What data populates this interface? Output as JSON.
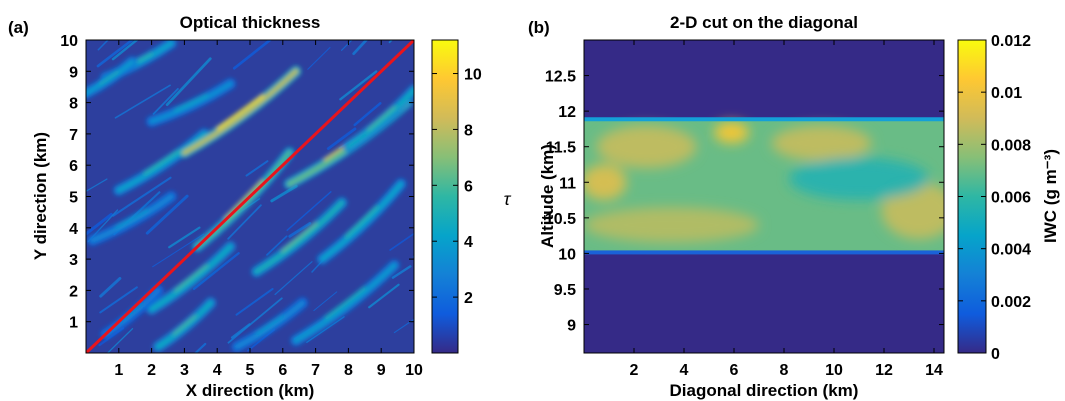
{
  "panels": {
    "a": {
      "label": "(a)",
      "title": "Optical thickness",
      "xlabel": "X direction (km)",
      "ylabel": "Y direction (km)",
      "colorbar_label": "τ"
    },
    "b": {
      "label": "(b)",
      "title": "2-D cut on the diagonal",
      "xlabel": "Diagonal direction (km)",
      "ylabel": "Altitude (km)",
      "colorbar_label": "IWC (g m⁻³)"
    }
  },
  "chart_data": [
    {
      "type": "heatmap",
      "title": "Optical thickness",
      "xlabel": "X direction (km)",
      "ylabel": "Y direction (km)",
      "xlim": [
        0,
        10
      ],
      "ylim": [
        0,
        10
      ],
      "xticks": [
        "1",
        "2",
        "3",
        "4",
        "5",
        "6",
        "7",
        "8",
        "9",
        "10"
      ],
      "xtick_values": [
        1,
        2,
        3,
        4,
        5,
        6,
        7,
        8,
        9,
        10
      ],
      "yticks": [
        "1",
        "2",
        "3",
        "4",
        "5",
        "6",
        "7",
        "8",
        "9",
        "10"
      ],
      "ytick_values": [
        1,
        2,
        3,
        4,
        5,
        6,
        7,
        8,
        9,
        10
      ],
      "colorbar": {
        "label": "τ",
        "range": [
          0,
          11.2
        ],
        "ticks": [
          "2",
          "4",
          "6",
          "8",
          "10"
        ],
        "tick_values": [
          2,
          4,
          6,
          8,
          10
        ]
      },
      "overlay_line": {
        "from": [
          0,
          0
        ],
        "to": [
          10,
          10
        ],
        "color": "#e8141c"
      },
      "colormap": "parula",
      "streaks": [
        {
          "from": [
            0.6,
            8.8
          ],
          "to": [
            2.6,
            9.9
          ],
          "peak": 5.5
        },
        {
          "from": [
            0.0,
            8.3
          ],
          "to": [
            1.4,
            9.3
          ],
          "peak": 5.0
        },
        {
          "from": [
            1.0,
            5.2
          ],
          "to": [
            3.6,
            7.0
          ],
          "peak": 5.5
        },
        {
          "from": [
            3.0,
            6.4
          ],
          "to": [
            6.4,
            9.0
          ],
          "peak": 10.5
        },
        {
          "from": [
            2.0,
            7.4
          ],
          "to": [
            4.4,
            8.6
          ],
          "peak": 4.5
        },
        {
          "from": [
            6.2,
            5.4
          ],
          "to": [
            9.8,
            8.0
          ],
          "peak": 8.5
        },
        {
          "from": [
            3.4,
            3.4
          ],
          "to": [
            6.2,
            6.4
          ],
          "peak": 8.0
        },
        {
          "from": [
            2.0,
            1.4
          ],
          "to": [
            4.4,
            3.4
          ],
          "peak": 6.0
        },
        {
          "from": [
            5.2,
            2.6
          ],
          "to": [
            7.8,
            4.8
          ],
          "peak": 6.5
        },
        {
          "from": [
            7.2,
            3.0
          ],
          "to": [
            9.6,
            5.4
          ],
          "peak": 5.5
        },
        {
          "from": [
            2.2,
            0.2
          ],
          "to": [
            3.8,
            1.6
          ],
          "peak": 6.0
        },
        {
          "from": [
            6.4,
            0.4
          ],
          "to": [
            9.4,
            2.8
          ],
          "peak": 5.0
        },
        {
          "from": [
            0.2,
            3.6
          ],
          "to": [
            2.6,
            5.0
          ],
          "peak": 4.0
        },
        {
          "from": [
            0.6,
            0.6
          ],
          "to": [
            2.2,
            2.0
          ],
          "peak": 3.5
        },
        {
          "from": [
            4.6,
            0.2
          ],
          "to": [
            6.6,
            1.6
          ],
          "peak": 4.0
        },
        {
          "from": [
            8.0,
            6.6
          ],
          "to": [
            10.0,
            8.4
          ],
          "peak": 6.0
        }
      ]
    },
    {
      "type": "heatmap",
      "title": "2-D cut on the diagonal",
      "xlabel": "Diagonal direction (km)",
      "ylabel": "Altitude (km)",
      "xlim": [
        0,
        14.4
      ],
      "ylim": [
        8.6,
        13.0
      ],
      "xticks": [
        "2",
        "4",
        "6",
        "8",
        "10",
        "12",
        "14"
      ],
      "xtick_values": [
        2,
        4,
        6,
        8,
        10,
        12,
        14
      ],
      "yticks": [
        "9",
        "9.5",
        "10",
        "10.5",
        "11",
        "11.5",
        "12",
        "12.5"
      ],
      "ytick_values": [
        9,
        9.5,
        10,
        10.5,
        11,
        11.5,
        12,
        12.5
      ],
      "colorbar": {
        "label": "IWC (g m⁻³)",
        "range": [
          0,
          0.012
        ],
        "ticks": [
          "0",
          "0.002",
          "0.004",
          "0.006",
          "0.008",
          "0.01",
          "0.012"
        ],
        "tick_values": [
          0,
          0.002,
          0.004,
          0.006,
          0.008,
          0.01,
          0.012
        ]
      },
      "colormap": "parula",
      "cloud_layer": {
        "base_km": 10.0,
        "top_km": 11.9,
        "typical_iwc": 0.007,
        "max_iwc": 0.0105,
        "min_iwc": 0.0045
      },
      "blobs": [
        {
          "x": 0.8,
          "z": 11.0,
          "iwc": 0.0095,
          "rx": 0.9,
          "rz": 0.25
        },
        {
          "x": 5.9,
          "z": 11.7,
          "iwc": 0.0105,
          "rx": 0.7,
          "rz": 0.15
        },
        {
          "x": 3.5,
          "z": 10.4,
          "iwc": 0.0085,
          "rx": 3.5,
          "rz": 0.25
        },
        {
          "x": 9.5,
          "z": 11.55,
          "iwc": 0.0088,
          "rx": 2.0,
          "rz": 0.25
        },
        {
          "x": 13.4,
          "z": 10.6,
          "iwc": 0.0088,
          "rx": 1.5,
          "rz": 0.4
        },
        {
          "x": 11.0,
          "z": 11.05,
          "iwc": 0.0055,
          "rx": 2.8,
          "rz": 0.3
        },
        {
          "x": 2.5,
          "z": 11.5,
          "iwc": 0.0088,
          "rx": 2.0,
          "rz": 0.3
        }
      ]
    }
  ]
}
